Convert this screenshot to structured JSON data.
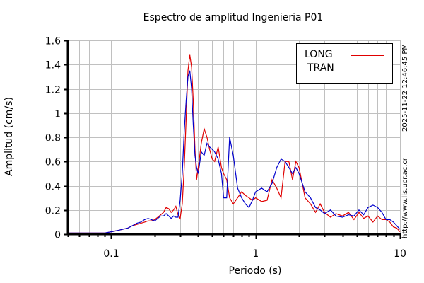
{
  "chart_data": {
    "type": "line",
    "title": "Espectro de amplitud Ingenieria P01",
    "xlabel": "Periodo (s)",
    "ylabel": "Amplitud (cm/s)",
    "xscale": "log",
    "xlim": [
      0.05,
      10
    ],
    "ylim": [
      0,
      1.6
    ],
    "x_ticks": [
      "0.1",
      "1",
      "10"
    ],
    "y_ticks": [
      "0",
      "0.2",
      "0.4",
      "0.6",
      "0.8",
      "1",
      "1.2",
      "1.4",
      "1.6"
    ],
    "grid": true,
    "legend_position": "upper right",
    "series": [
      {
        "name": "LONG",
        "color": "#e00000",
        "x": [
          0.05,
          0.06,
          0.07,
          0.08,
          0.09,
          0.1,
          0.11,
          0.12,
          0.13,
          0.14,
          0.15,
          0.16,
          0.17,
          0.18,
          0.19,
          0.2,
          0.21,
          0.22,
          0.23,
          0.24,
          0.25,
          0.26,
          0.27,
          0.28,
          0.29,
          0.3,
          0.31,
          0.32,
          0.33,
          0.34,
          0.35,
          0.36,
          0.37,
          0.38,
          0.39,
          0.4,
          0.42,
          0.44,
          0.46,
          0.48,
          0.5,
          0.52,
          0.55,
          0.58,
          0.6,
          0.63,
          0.66,
          0.7,
          0.75,
          0.8,
          0.85,
          0.9,
          0.95,
          1.0,
          1.1,
          1.2,
          1.3,
          1.4,
          1.5,
          1.6,
          1.7,
          1.8,
          1.9,
          2.0,
          2.2,
          2.4,
          2.6,
          2.8,
          3.0,
          3.3,
          3.6,
          4.0,
          4.4,
          4.8,
          5.2,
          5.6,
          6.0,
          6.5,
          7.0,
          7.5,
          8.0,
          8.5,
          9.0,
          9.5,
          10.0
        ],
        "values": [
          0.01,
          0.01,
          0.01,
          0.01,
          0.01,
          0.02,
          0.03,
          0.04,
          0.05,
          0.07,
          0.08,
          0.09,
          0.1,
          0.11,
          0.11,
          0.12,
          0.14,
          0.16,
          0.18,
          0.22,
          0.21,
          0.18,
          0.2,
          0.23,
          0.16,
          0.13,
          0.25,
          0.55,
          0.95,
          1.35,
          1.48,
          1.38,
          1.1,
          0.7,
          0.45,
          0.55,
          0.75,
          0.87,
          0.8,
          0.7,
          0.62,
          0.6,
          0.72,
          0.55,
          0.5,
          0.45,
          0.3,
          0.25,
          0.3,
          0.35,
          0.32,
          0.3,
          0.28,
          0.3,
          0.27,
          0.28,
          0.45,
          0.38,
          0.3,
          0.6,
          0.6,
          0.45,
          0.6,
          0.55,
          0.3,
          0.25,
          0.18,
          0.25,
          0.18,
          0.14,
          0.17,
          0.15,
          0.18,
          0.12,
          0.18,
          0.13,
          0.15,
          0.1,
          0.15,
          0.12,
          0.12,
          0.1,
          0.06,
          0.05,
          0.02
        ]
      },
      {
        "name": "TRAN",
        "color": "#0000cc",
        "x": [
          0.05,
          0.06,
          0.07,
          0.08,
          0.09,
          0.1,
          0.11,
          0.12,
          0.13,
          0.14,
          0.15,
          0.16,
          0.17,
          0.18,
          0.19,
          0.2,
          0.21,
          0.22,
          0.23,
          0.24,
          0.25,
          0.26,
          0.27,
          0.28,
          0.29,
          0.3,
          0.31,
          0.32,
          0.33,
          0.34,
          0.35,
          0.36,
          0.37,
          0.38,
          0.39,
          0.4,
          0.42,
          0.44,
          0.46,
          0.48,
          0.5,
          0.52,
          0.55,
          0.58,
          0.6,
          0.63,
          0.66,
          0.7,
          0.75,
          0.8,
          0.85,
          0.9,
          0.95,
          1.0,
          1.1,
          1.2,
          1.3,
          1.4,
          1.5,
          1.6,
          1.7,
          1.8,
          1.9,
          2.0,
          2.2,
          2.4,
          2.6,
          2.8,
          3.0,
          3.3,
          3.6,
          4.0,
          4.4,
          4.8,
          5.2,
          5.6,
          6.0,
          6.5,
          7.0,
          7.5,
          8.0,
          8.5,
          9.0,
          9.5,
          10.0
        ],
        "values": [
          0.01,
          0.01,
          0.01,
          0.01,
          0.01,
          0.02,
          0.03,
          0.04,
          0.05,
          0.07,
          0.09,
          0.1,
          0.12,
          0.13,
          0.12,
          0.11,
          0.13,
          0.15,
          0.15,
          0.17,
          0.15,
          0.13,
          0.15,
          0.14,
          0.14,
          0.28,
          0.5,
          0.85,
          1.1,
          1.3,
          1.35,
          1.2,
          0.9,
          0.65,
          0.55,
          0.5,
          0.68,
          0.65,
          0.75,
          0.72,
          0.7,
          0.68,
          0.62,
          0.5,
          0.3,
          0.3,
          0.8,
          0.65,
          0.38,
          0.3,
          0.25,
          0.22,
          0.28,
          0.35,
          0.38,
          0.35,
          0.42,
          0.55,
          0.62,
          0.6,
          0.55,
          0.5,
          0.55,
          0.5,
          0.35,
          0.3,
          0.22,
          0.2,
          0.17,
          0.2,
          0.15,
          0.14,
          0.16,
          0.15,
          0.2,
          0.16,
          0.22,
          0.24,
          0.22,
          0.18,
          0.12,
          0.12,
          0.1,
          0.07,
          0.04
        ]
      }
    ]
  },
  "side_text": {
    "timestamp": "2025-11-22 12:46:45 PM",
    "url": "http://www.lis.ucr.ac.cr"
  }
}
